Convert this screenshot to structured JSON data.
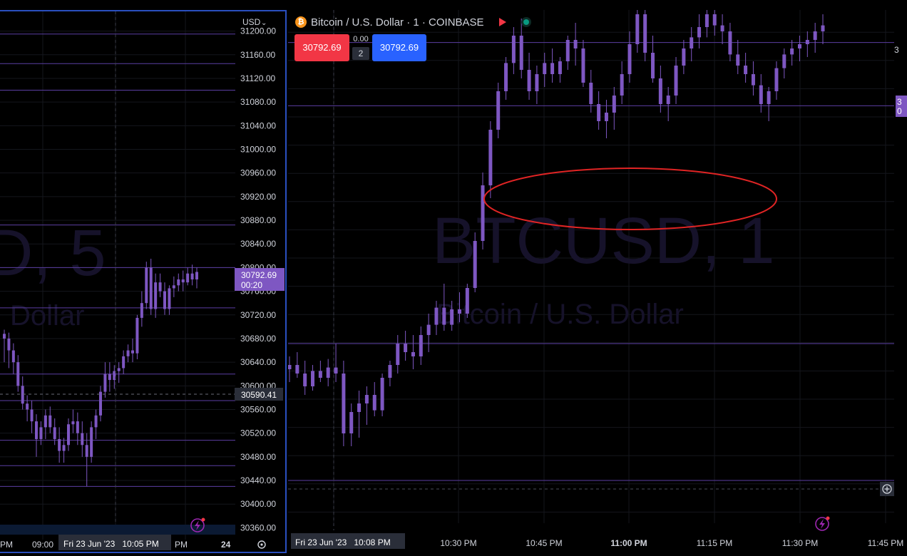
{
  "left_chart": {
    "currency": "USD",
    "watermark_symbol": "D, 5",
    "watermark_name": "Dollar",
    "price_ticks": [
      "31200.00",
      "31160.00",
      "31120.00",
      "31080.00",
      "31040.00",
      "31000.00",
      "30960.00",
      "30920.00",
      "30880.00",
      "30840.00",
      "30800.00",
      "30760.00",
      "30720.00",
      "30680.00",
      "30640.00",
      "30600.00",
      "30560.00",
      "30520.00",
      "30480.00",
      "30440.00",
      "30400.00",
      "30360.00"
    ],
    "last_price": "30792.69",
    "countdown": "00:20",
    "crosshair_price": "30590.41",
    "time_labels": [
      "PM",
      "09:00",
      "PM",
      "24"
    ],
    "crosshair_time": "Fri 23 Jun '23   10:05 PM"
  },
  "right_chart": {
    "title": "Bitcoin / U.S. Dollar · 1 · COINBASE",
    "sell_price": "30792.69",
    "buy_price": "30792.69",
    "spread": "0.00",
    "quantity": "2",
    "watermark_symbol": "BTCUSD, 1",
    "watermark_name": "Bitcoin / U.S. Dollar",
    "time_labels": [
      "10:30 PM",
      "10:45 PM",
      "11:00 PM",
      "11:15 PM",
      "11:30 PM",
      "11:45 PM"
    ],
    "crosshair_time": "Fri 23 Jun '23   10:08 PM",
    "axis_partial": "3",
    "last_price_partial": "3",
    "last_price_partial_2": "0"
  },
  "chart_data": [
    {
      "type": "candlestick",
      "interval": "5",
      "ylim": [
        30340,
        31220
      ],
      "candles": [
        [
          30688,
          30695,
          30640,
          30680
        ],
        [
          30680,
          30690,
          30630,
          30660
        ],
        [
          30660,
          30672,
          30620,
          30640
        ],
        [
          30640,
          30652,
          30590,
          30600
        ],
        [
          30600,
          30616,
          30560,
          30570
        ],
        [
          30570,
          30584,
          30540,
          30560
        ],
        [
          30560,
          30575,
          30520,
          30540
        ],
        [
          30540,
          30552,
          30480,
          30510
        ],
        [
          30510,
          30540,
          30500,
          30530
        ],
        [
          30530,
          30560,
          30510,
          30550
        ],
        [
          30550,
          30565,
          30520,
          30530
        ],
        [
          30530,
          30545,
          30500,
          30510
        ],
        [
          30510,
          30530,
          30470,
          30490
        ],
        [
          30490,
          30512,
          30470,
          30500
        ],
        [
          30500,
          30545,
          30490,
          30535
        ],
        [
          30535,
          30560,
          30520,
          30540
        ],
        [
          30540,
          30555,
          30500,
          30520
        ],
        [
          30520,
          30540,
          30480,
          30500
        ],
        [
          30500,
          30520,
          30430,
          30480
        ],
        [
          30480,
          30540,
          30470,
          30530
        ],
        [
          30530,
          30560,
          30510,
          30550
        ],
        [
          30550,
          30600,
          30540,
          30590
        ],
        [
          30590,
          30640,
          30580,
          30620
        ],
        [
          30620,
          30640,
          30590,
          30610
        ],
        [
          30610,
          30635,
          30595,
          30625
        ],
        [
          30625,
          30640,
          30605,
          30630
        ],
        [
          30630,
          30660,
          30620,
          30650
        ],
        [
          30650,
          30670,
          30640,
          30660
        ],
        [
          30660,
          30680,
          30640,
          30655
        ],
        [
          30655,
          30720,
          30645,
          30715
        ],
        [
          30715,
          30760,
          30700,
          30740
        ],
        [
          30740,
          30810,
          30730,
          30800
        ],
        [
          30800,
          30815,
          30720,
          30730
        ],
        [
          30730,
          30790,
          30715,
          30775
        ],
        [
          30775,
          30790,
          30750,
          30760
        ],
        [
          30760,
          30775,
          30720,
          30730
        ],
        [
          30730,
          30770,
          30720,
          30765
        ],
        [
          30765,
          30785,
          30750,
          30770
        ],
        [
          30770,
          30790,
          30760,
          30780
        ],
        [
          30780,
          30795,
          30760,
          30775
        ],
        [
          30775,
          30800,
          30770,
          30790
        ],
        [
          30790,
          30805,
          30770,
          30780
        ],
        [
          30780,
          30800,
          30765,
          30792.69
        ]
      ],
      "price_lines": [
        31195,
        31145,
        31100,
        30872,
        30800,
        30732,
        30620,
        30575,
        30508,
        30465,
        30430
      ],
      "crosshair_price": 30590.41
    },
    {
      "type": "candlestick",
      "interval": "1",
      "exchange": "COINBASE",
      "ylim": [
        30380,
        30980
      ],
      "candles": [
        [
          30560,
          30575,
          30545,
          30565
        ],
        [
          30565,
          30580,
          30550,
          30555
        ],
        [
          30555,
          30570,
          30530,
          30540
        ],
        [
          30540,
          30565,
          30535,
          30558
        ],
        [
          30558,
          30570,
          30545,
          30550
        ],
        [
          30550,
          30572,
          30540,
          30562
        ],
        [
          30562,
          30590,
          30545,
          30555
        ],
        [
          30555,
          30570,
          30470,
          30485
        ],
        [
          30485,
          30520,
          30470,
          30510
        ],
        [
          30510,
          30535,
          30480,
          30520
        ],
        [
          30520,
          30540,
          30495,
          30530
        ],
        [
          30530,
          30545,
          30505,
          30512
        ],
        [
          30512,
          30555,
          30505,
          30550
        ],
        [
          30550,
          30570,
          30540,
          30565
        ],
        [
          30565,
          30600,
          30555,
          30590
        ],
        [
          30590,
          30605,
          30570,
          30580
        ],
        [
          30580,
          30600,
          30560,
          30575
        ],
        [
          30575,
          30610,
          30565,
          30600
        ],
        [
          30600,
          30625,
          30580,
          30612
        ],
        [
          30612,
          30640,
          30600,
          30632
        ],
        [
          30632,
          30660,
          30605,
          30612
        ],
        [
          30612,
          30640,
          30605,
          30630
        ],
        [
          30630,
          30650,
          30615,
          30625
        ],
        [
          30625,
          30660,
          30620,
          30655
        ],
        [
          30655,
          30720,
          30650,
          30710
        ],
        [
          30710,
          30790,
          30700,
          30775
        ],
        [
          30775,
          30850,
          30760,
          30840
        ],
        [
          30840,
          30895,
          30830,
          30885
        ],
        [
          30885,
          30925,
          30875,
          30918
        ],
        [
          30918,
          30960,
          30905,
          30950
        ],
        [
          30950,
          30970,
          30900,
          30910
        ],
        [
          30910,
          30930,
          30875,
          30885
        ],
        [
          30885,
          30915,
          30870,
          30905
        ],
        [
          30905,
          30930,
          30890,
          30918
        ],
        [
          30918,
          30935,
          30895,
          30905
        ],
        [
          30905,
          30925,
          30895,
          30920
        ],
        [
          30920,
          30950,
          30910,
          30945
        ],
        [
          30945,
          30965,
          30915,
          30935
        ],
        [
          30935,
          30945,
          30890,
          30895
        ],
        [
          30895,
          30910,
          30860,
          30870
        ],
        [
          30870,
          30885,
          30840,
          30850
        ],
        [
          30850,
          30875,
          30830,
          30860
        ],
        [
          30860,
          30890,
          30840,
          30880
        ],
        [
          30880,
          30920,
          30870,
          30905
        ],
        [
          30905,
          30955,
          30895,
          30940
        ],
        [
          30940,
          30985,
          30930,
          30975
        ],
        [
          30975,
          30980,
          30920,
          30930
        ],
        [
          30930,
          30950,
          30895,
          30900
        ],
        [
          30900,
          30915,
          30860,
          30870
        ],
        [
          30870,
          30890,
          30850,
          30880
        ],
        [
          30880,
          30925,
          30870,
          30915
        ],
        [
          30915,
          30945,
          30905,
          30935
        ],
        [
          30935,
          30960,
          30920,
          30948
        ],
        [
          30948,
          30975,
          30935,
          30960
        ],
        [
          30960,
          30990,
          30948,
          30975
        ],
        [
          30975,
          30990,
          30950,
          30962
        ],
        [
          30962,
          30975,
          30940,
          30955
        ],
        [
          30955,
          30965,
          30920,
          30928
        ],
        [
          30928,
          30945,
          30905,
          30915
        ],
        [
          30915,
          30930,
          30895,
          30905
        ],
        [
          30905,
          30920,
          30880,
          30892
        ],
        [
          30892,
          30905,
          30860,
          30870
        ],
        [
          30870,
          30890,
          30850,
          30885
        ],
        [
          30885,
          30920,
          30875,
          30912
        ],
        [
          30912,
          30935,
          30900,
          30928
        ],
        [
          30928,
          30945,
          30915,
          30935
        ],
        [
          30935,
          30950,
          30920,
          30940
        ],
        [
          30940,
          30955,
          30925,
          30945
        ],
        [
          30945,
          30965,
          30930,
          30955
        ],
        [
          30955,
          30975,
          30940,
          30962
        ]
      ],
      "price_lines": [
        30942,
        30868,
        30590,
        30430
      ],
      "crosshair_price": 30410,
      "annotation": "red ellipse"
    }
  ],
  "colors": {
    "candle": "#7e57c2",
    "price_line": "#5b3ea3",
    "sell": "#f23645",
    "buy": "#2962ff",
    "ellipse": "#e02424",
    "panel_border": "#2a4fbf"
  }
}
